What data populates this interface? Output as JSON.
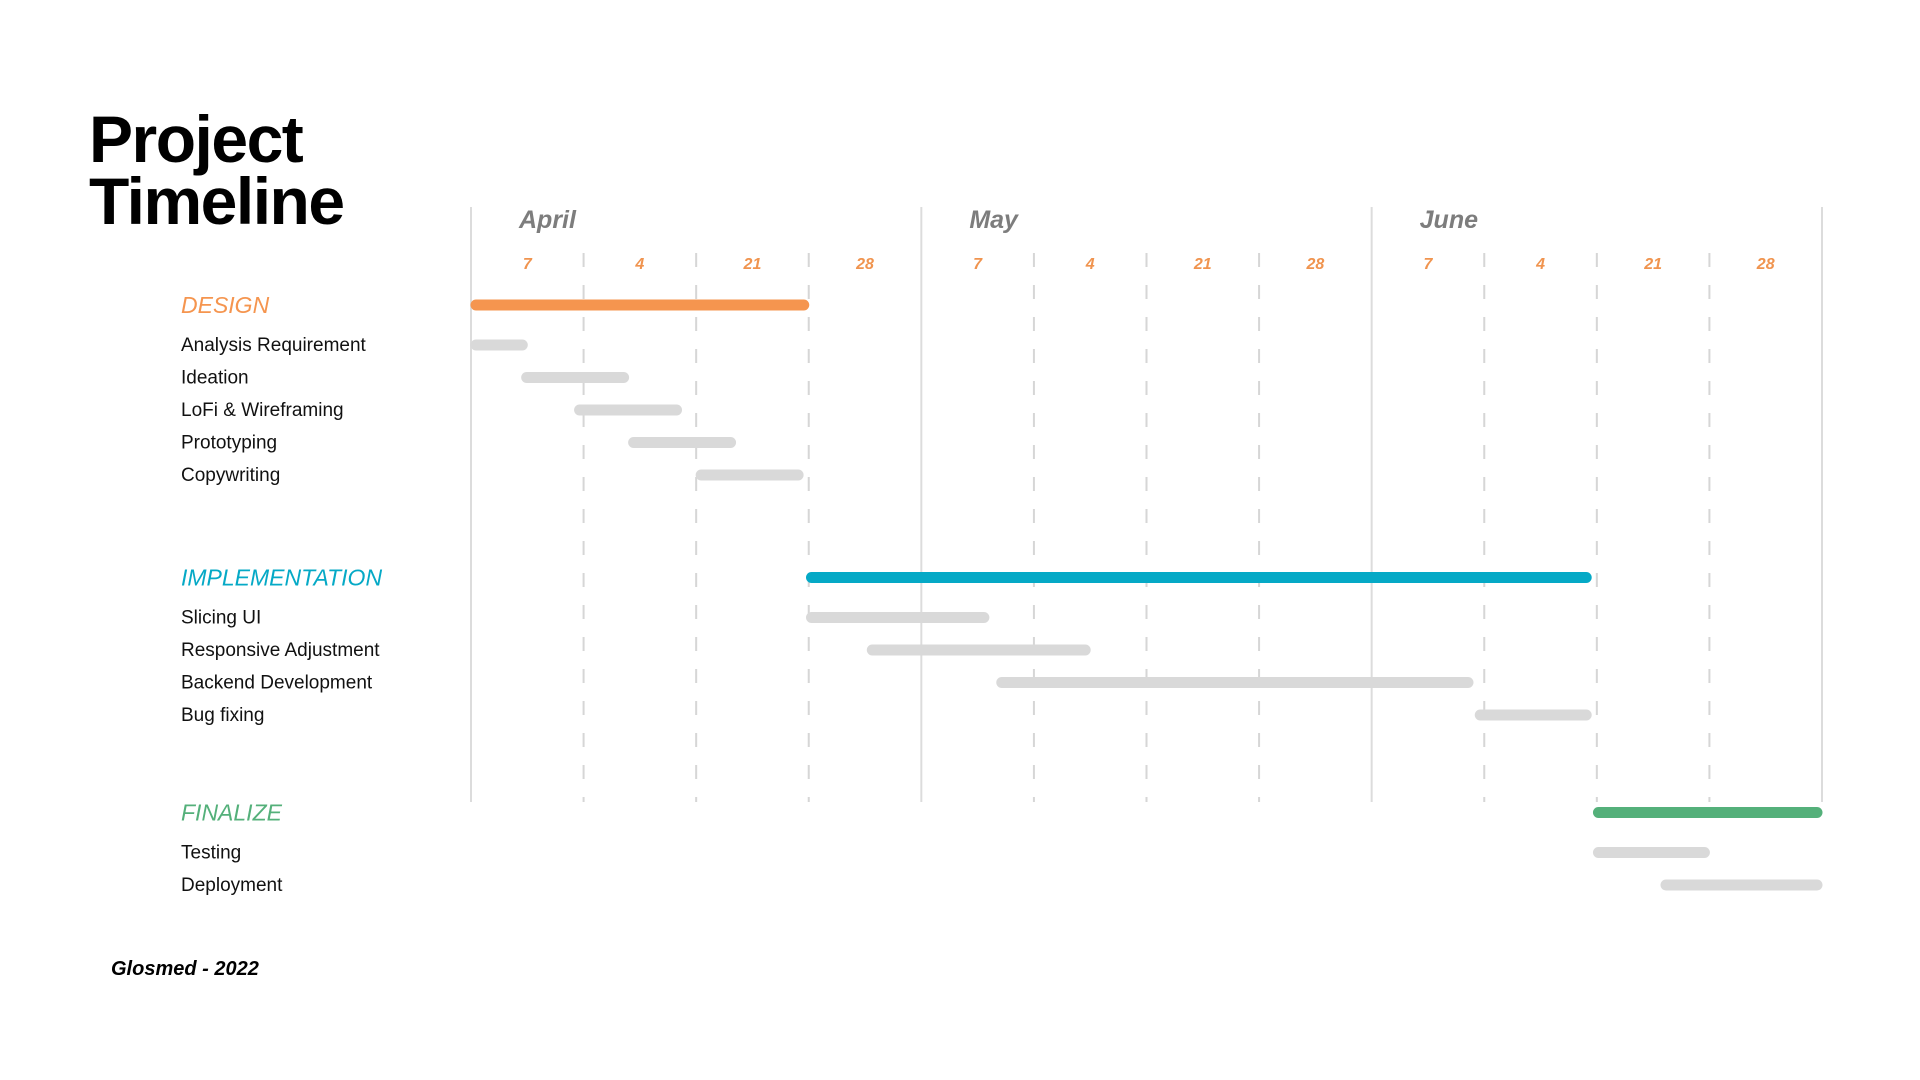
{
  "page": {
    "title_lines": [
      "Project",
      "Timeline"
    ],
    "footer": "Glosmed - 2022"
  },
  "chart_data": {
    "type": "gantt",
    "months": [
      "April",
      "May",
      "June"
    ],
    "week_ticks": [
      "7",
      "4",
      "21",
      "28",
      "7",
      "4",
      "21",
      "28",
      "7",
      "4",
      "21",
      "28"
    ],
    "x_range_weeks": [
      0,
      12
    ],
    "colors": {
      "design": "#f5954f",
      "implementation": "#05a9c6",
      "finalize": "#54b07a",
      "task": "#d9d9d9",
      "month_gridline": "#dcdcdc",
      "week_gridline": "#d6d6d6"
    },
    "phases": [
      {
        "name": "DESIGN",
        "color_key": "design",
        "start": 0,
        "end": 3,
        "tasks": [
          {
            "name": "Analysis Requirement",
            "start": 0,
            "end": 0.5
          },
          {
            "name": "Ideation",
            "start": 0.45,
            "end": 1.4
          },
          {
            "name": "LoFi & Wireframing",
            "start": 0.92,
            "end": 1.87
          },
          {
            "name": "Prototyping",
            "start": 1.4,
            "end": 2.35
          },
          {
            "name": "Copywriting",
            "start": 2.0,
            "end": 2.95
          }
        ]
      },
      {
        "name": "IMPLEMENTATION",
        "color_key": "implementation",
        "start": 2.98,
        "end": 9.95,
        "tasks": [
          {
            "name": "Slicing UI",
            "start": 2.98,
            "end": 4.6
          },
          {
            "name": "Responsive Adjustment",
            "start": 3.52,
            "end": 5.5
          },
          {
            "name": "Backend Development",
            "start": 4.67,
            "end": 8.9
          },
          {
            "name": "Bug fixing",
            "start": 8.92,
            "end": 9.95
          }
        ]
      },
      {
        "name": "FINALIZE",
        "color_key": "finalize",
        "start": 9.97,
        "end": 12,
        "tasks": [
          {
            "name": "Testing",
            "start": 9.97,
            "end": 11.0
          },
          {
            "name": "Deployment",
            "start": 10.57,
            "end": 12
          }
        ]
      }
    ]
  }
}
